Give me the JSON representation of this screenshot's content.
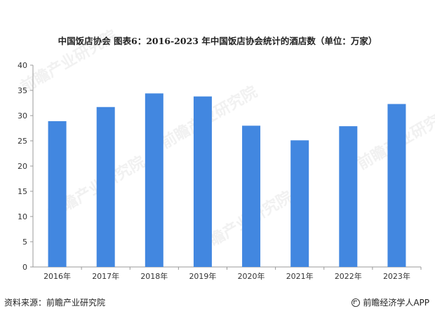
{
  "title": "中国饭店协会  图表6：2016-2023 年中国饭店协会统计的酒店数（单位：万家）",
  "source": "资料来源：前瞻产业研究院",
  "brand": "前瞻经济学人APP",
  "watermark_text": "前瞻产业研究院",
  "colors": {
    "bar": "#4287E0",
    "axis": "#999999"
  },
  "chart_data": {
    "type": "bar",
    "title": "中国饭店协会  图表6：2016-2023 年中国饭店协会统计的酒店数（单位：万家）",
    "unit": "万家",
    "categories": [
      "2016年",
      "2017年",
      "2018年",
      "2019年",
      "2020年",
      "2021年",
      "2022年",
      "2023年"
    ],
    "values": [
      28.9,
      31.7,
      34.4,
      33.8,
      28.0,
      25.1,
      27.9,
      32.3
    ],
    "ylim": [
      0,
      40
    ],
    "yticks": [
      0,
      5,
      10,
      15,
      20,
      25,
      30,
      35,
      40
    ],
    "grid": false,
    "legend": "none"
  }
}
